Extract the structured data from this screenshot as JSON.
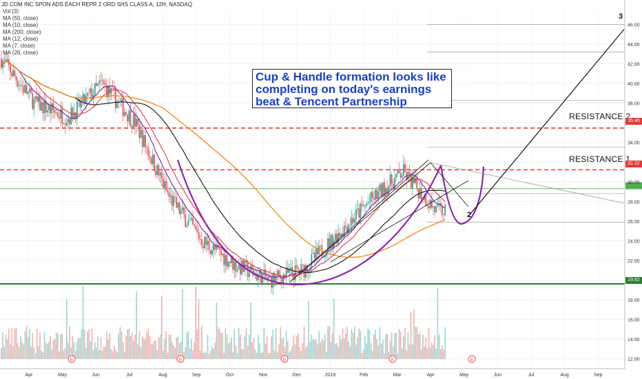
{
  "header": {
    "title": "JD.COM INC SPON ADS EACH REPR 2 ORD SHS CLASS A, 12H, NASDAQ",
    "indicators": [
      "Vol (3)",
      "MA (50, close)",
      "MA (10, close)",
      "MA (200, close)",
      "MA (12, close)",
      "MA (7, close)",
      "MA (26, close)"
    ]
  },
  "annotation": {
    "lines": [
      "Cup & Handle formation looks like",
      "completing on today's earnings",
      "beat & Tencent Partnership"
    ]
  },
  "levels": {
    "resistance_2": {
      "label": "RESISTANCE 2",
      "price": 35.46,
      "badge": "35.46"
    },
    "resistance_1": {
      "label": "RESISTANCE 1",
      "price": 31.22,
      "badge": "31.22"
    },
    "support": {
      "price": 19.62,
      "badge": "19.62"
    }
  },
  "wave_labels": {
    "top": "3",
    "handle": "2"
  },
  "colors": {
    "resistance": "#e53935",
    "support": "#2e7d32",
    "cup": "#8e24aa",
    "ma_black": "#111111",
    "ma_orange": "#f57c00",
    "ma_red": "#e53935",
    "ma_purple": "#7b1fa2",
    "candle_up": "#26a69a",
    "candle_down": "#ef5350",
    "note_text": "#1a3fc9"
  },
  "chart_data": {
    "type": "line",
    "title": "JD.COM INC SPON ADS EACH REPR 2 ORD SHS CLASS A, 12H, NASDAQ",
    "x_ticks": [
      "Apr",
      "May",
      "Jun",
      "Jul",
      "Aug",
      "Sep",
      "Oct",
      "Nov",
      "Dec",
      "2019",
      "Feb",
      "Mar",
      "Apr",
      "May",
      "Jun",
      "Jul",
      "Aug",
      "Sep"
    ],
    "y_ticks": [
      12.0,
      14.0,
      16.0,
      18.0,
      20.0,
      22.0,
      24.0,
      26.0,
      28.0,
      30.0,
      32.0,
      34.0,
      36.0,
      38.0,
      40.0,
      42.0,
      44.0,
      46.0
    ],
    "ylim": [
      11,
      47.5
    ],
    "earnings_markers": [
      "May",
      "Aug",
      "Nov",
      "Mar",
      "May"
    ],
    "series": [
      {
        "name": "Price",
        "x": [
          "Apr 2018",
          "May 2018",
          "Jun 2018",
          "Jul 2018",
          "Aug 2018",
          "Sep 2018",
          "Oct 2018",
          "Nov 2018",
          "Dec 2018",
          "Jan 2019",
          "Feb 2019",
          "Mar 2019",
          "Apr 2019",
          "May 2019"
        ],
        "values": [
          42.5,
          38.0,
          36.5,
          40.0,
          36.0,
          28.5,
          24.0,
          21.5,
          20.0,
          21.0,
          24.5,
          28.0,
          31.0,
          27.0
        ]
      }
    ],
    "projection": [
      {
        "x": "May 2019",
        "value": 26.5
      },
      {
        "x": "Sep 2019",
        "value": 45.5
      }
    ]
  }
}
